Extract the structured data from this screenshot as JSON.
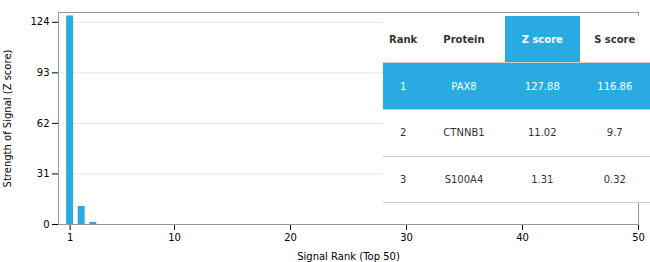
{
  "chart_data": {
    "type": "bar",
    "x": [
      1,
      2,
      3
    ],
    "values": [
      127.88,
      11.02,
      1.31
    ],
    "color": "#29ABE2",
    "xlim": [
      0,
      50
    ],
    "ylim": [
      0,
      130
    ],
    "xticks": [
      1,
      10,
      20,
      30,
      40,
      50
    ],
    "yticks": [
      0,
      31,
      62,
      93,
      124
    ],
    "xlabel": "Signal Rank (Top 50)",
    "ylabel": "Strength of Signal (Z score)",
    "grid": true,
    "table": {
      "headers": [
        "Rank",
        "Protein",
        "Z score",
        "S score"
      ],
      "rows": [
        [
          "1",
          "PAX8",
          "127.88",
          "116.86"
        ],
        [
          "2",
          "CTNNB1",
          "11.02",
          "9.7"
        ],
        [
          "3",
          "S100A4",
          "1.31",
          "0.32"
        ]
      ],
      "color": "#29ABE2"
    }
  }
}
